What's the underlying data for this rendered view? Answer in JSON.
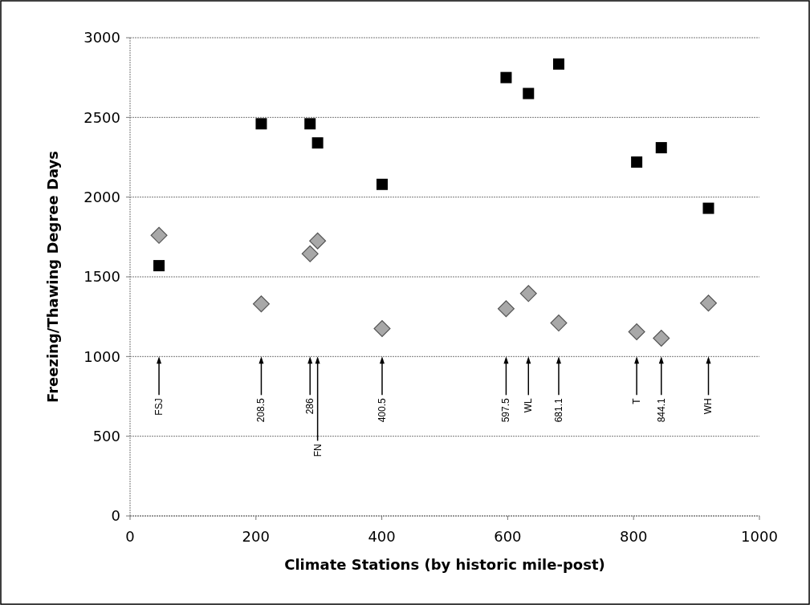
{
  "chart_data": {
    "type": "scatter",
    "xlabel": "Climate Stations (by historic mile-post)",
    "ylabel": "Freezing/Thawing Degree Days",
    "xlim": [
      0,
      1000
    ],
    "xticks": [
      0,
      200,
      400,
      600,
      800,
      1000
    ],
    "ylim": [
      0,
      3000
    ],
    "yticks": [
      0,
      500,
      1000,
      1500,
      2000,
      2500,
      3000
    ],
    "grid": "y",
    "series": [
      {
        "color": "#000000",
        "marker": "square",
        "x": [
          46,
          208.5,
          286,
          298,
          400.5,
          597.5,
          633,
          681.1,
          805,
          844.1,
          919
        ],
        "values": [
          1570,
          2460,
          2460,
          2340,
          2080,
          2750,
          2650,
          2835,
          2220,
          2310,
          1930
        ]
      },
      {
        "color": "#a8a8a8",
        "marker": "diamond",
        "x": [
          46,
          208.5,
          286,
          298,
          400.5,
          597.5,
          633,
          681.1,
          805,
          844.1,
          919
        ],
        "values": [
          1760,
          1330,
          1645,
          1725,
          1175,
          1300,
          1395,
          1210,
          1155,
          1115,
          1335
        ]
      }
    ],
    "annotations": [
      "FSJ",
      "208.5",
      "286",
      "FN",
      "400.5",
      "597.5",
      "WL",
      "681.1",
      "T",
      "844.1",
      "WH"
    ]
  }
}
